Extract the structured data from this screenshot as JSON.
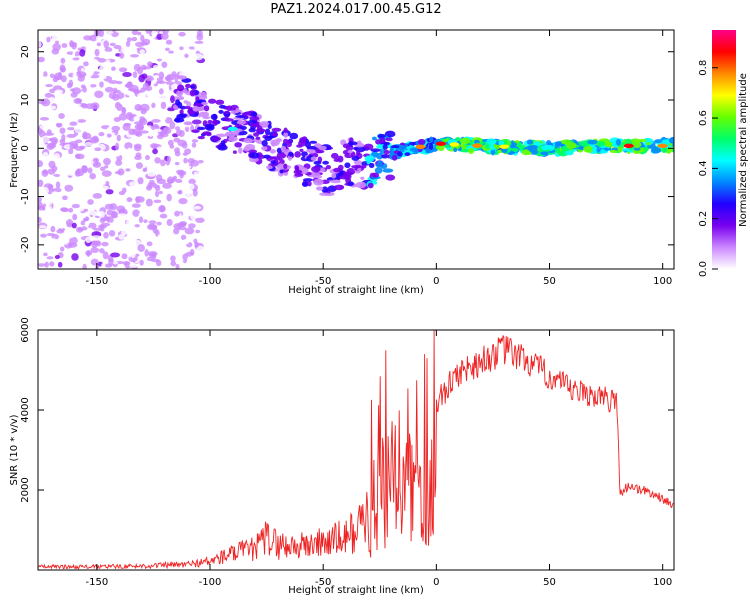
{
  "title": "PAZ1.2024.017.00.45.G12",
  "chart_data": [
    {
      "type": "heatmap",
      "xlabel": "Height of straight line (km)",
      "ylabel": "Frequency (Hz)",
      "xlim": [
        -176,
        105
      ],
      "ylim": [
        -25,
        24.5
      ],
      "xticks": [
        -150,
        -100,
        -50,
        0,
        50,
        100
      ],
      "yticks": [
        -20,
        -10,
        0,
        10,
        20
      ],
      "colorbar": {
        "label": "Normalized spectral amplitude",
        "range": [
          0,
          0.95
        ],
        "ticks": [
          "0.0",
          "0.2",
          "0.4",
          "0.6",
          "0.8"
        ],
        "colors": [
          "#ffffff",
          "#cc88ff",
          "#7700ee",
          "#2200ff",
          "#0088ff",
          "#00ffff",
          "#00ff66",
          "#66ff00",
          "#ffff00",
          "#ff8800",
          "#ff0000",
          "#ff0088"
        ]
      },
      "ridge": [
        {
          "x": -110,
          "freq": 10
        },
        {
          "x": -100,
          "freq": 5
        },
        {
          "x": -90,
          "freq": 4
        },
        {
          "x": -80,
          "freq": 2
        },
        {
          "x": -70,
          "freq": 0
        },
        {
          "x": -60,
          "freq": -2
        },
        {
          "x": -50,
          "freq": -5
        },
        {
          "x": -40,
          "freq": -3
        },
        {
          "x": -30,
          "freq": -3
        },
        {
          "x": -20,
          "freq": -1
        },
        {
          "x": -10,
          "freq": 0
        },
        {
          "x": 0,
          "freq": 1
        },
        {
          "x": 20,
          "freq": 0.5
        },
        {
          "x": 50,
          "freq": 0
        },
        {
          "x": 80,
          "freq": 0.5
        },
        {
          "x": 100,
          "freq": 0.5
        }
      ]
    },
    {
      "type": "line",
      "xlabel": "Height of straight line (km)",
      "ylabel": "SNR (10 * v/v)",
      "xlim": [
        -176,
        105
      ],
      "ylim": [
        0,
        6000
      ],
      "xticks": [
        -150,
        -100,
        -50,
        0,
        50,
        100
      ],
      "yticks": [
        2000,
        4000,
        6000
      ],
      "color": "#ee2222",
      "envelope": [
        {
          "x": -176,
          "y": 130
        },
        {
          "x": -150,
          "y": 130
        },
        {
          "x": -130,
          "y": 160
        },
        {
          "x": -110,
          "y": 220
        },
        {
          "x": -100,
          "y": 350
        },
        {
          "x": -90,
          "y": 650
        },
        {
          "x": -80,
          "y": 850
        },
        {
          "x": -75,
          "y": 1300
        },
        {
          "x": -70,
          "y": 1000
        },
        {
          "x": -60,
          "y": 950
        },
        {
          "x": -50,
          "y": 1100
        },
        {
          "x": -40,
          "y": 1300
        },
        {
          "x": -33,
          "y": 1800
        },
        {
          "x": -28,
          "y": 2800
        },
        {
          "x": -20,
          "y": 3800
        },
        {
          "x": -10,
          "y": 3700
        },
        {
          "x": 0,
          "y": 4400
        },
        {
          "x": 5,
          "y": 4800
        },
        {
          "x": 10,
          "y": 5200
        },
        {
          "x": 20,
          "y": 5500
        },
        {
          "x": 30,
          "y": 5800
        },
        {
          "x": 40,
          "y": 5500
        },
        {
          "x": 50,
          "y": 5100
        },
        {
          "x": 60,
          "y": 4700
        },
        {
          "x": 70,
          "y": 4600
        },
        {
          "x": 80,
          "y": 4400
        },
        {
          "x": 81,
          "y": 2000
        },
        {
          "x": 85,
          "y": 2200
        },
        {
          "x": 95,
          "y": 2000
        },
        {
          "x": 105,
          "y": 1700
        }
      ]
    }
  ]
}
